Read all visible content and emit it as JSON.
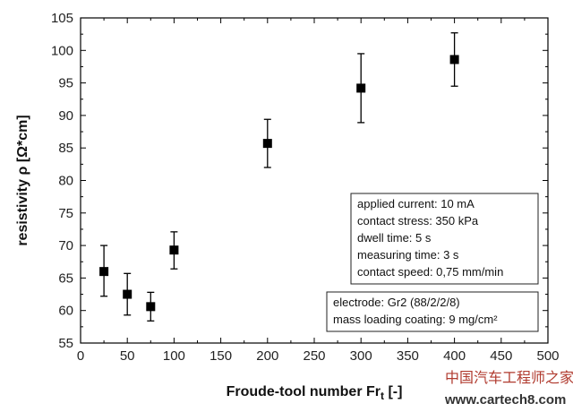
{
  "chart_data": {
    "type": "scatter",
    "xlabel": "Froude-tool number Fr",
    "xlabel_sub": "t",
    "xlabel_suffix": " [-]",
    "ylabel": "resistivity ρ [Ω*cm]",
    "xlim": [
      0,
      500
    ],
    "ylim": [
      55,
      105
    ],
    "x_ticks": [
      0,
      50,
      100,
      150,
      200,
      250,
      300,
      350,
      400,
      450,
      500
    ],
    "y_ticks": [
      55,
      60,
      65,
      70,
      75,
      80,
      85,
      90,
      95,
      100,
      105
    ],
    "grid": false,
    "marker": "square",
    "marker_color": "#000000",
    "points": [
      {
        "x": 25,
        "y": 66.0,
        "err_low": 62.2,
        "err_high": 70.0
      },
      {
        "x": 50,
        "y": 62.5,
        "err_low": 59.3,
        "err_high": 65.7
      },
      {
        "x": 75,
        "y": 60.6,
        "err_low": 58.4,
        "err_high": 62.8
      },
      {
        "x": 100,
        "y": 69.3,
        "err_low": 66.4,
        "err_high": 72.1
      },
      {
        "x": 200,
        "y": 85.7,
        "err_low": 82.0,
        "err_high": 89.4
      },
      {
        "x": 300,
        "y": 94.2,
        "err_low": 88.9,
        "err_high": 99.5
      },
      {
        "x": 400,
        "y": 98.6,
        "err_low": 94.5,
        "err_high": 102.7
      }
    ],
    "annotations": [
      {
        "lines": [
          "applied current: 10 mA",
          "contact stress: 350 kPa",
          "dwell time: 5 s",
          "measuring time: 3 s",
          "contact speed: 0,75 mm/min"
        ]
      },
      {
        "lines": [
          "electrode: Gr2 (88/2/2/8)",
          "mass loading coating: 9 mg/cm²"
        ]
      }
    ]
  },
  "watermark": {
    "text_cn": "中国汽车工程师之家",
    "url": "www.cartech8.com"
  }
}
